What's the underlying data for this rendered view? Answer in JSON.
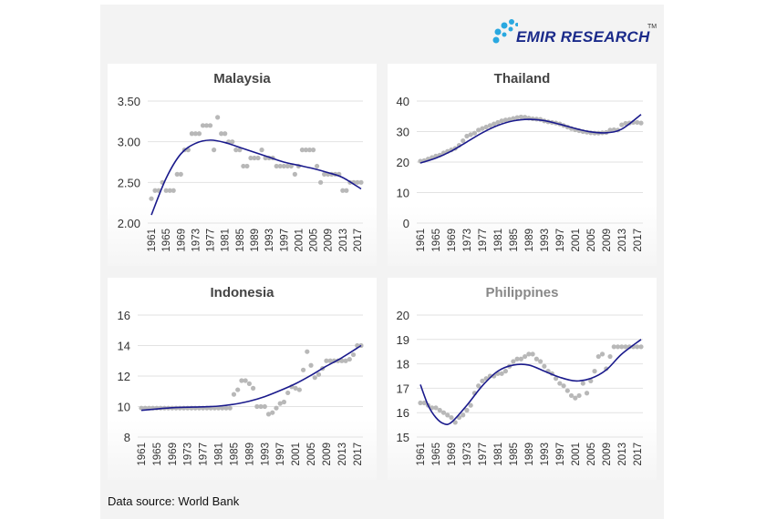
{
  "logo": {
    "text": "EMIR RESEARCH",
    "tm": "TM",
    "accent": "#29a8e0",
    "brand": "#1a2a8a"
  },
  "footer": "Data source: World Bank",
  "chart_data": [
    {
      "type": "scatter",
      "title": "Malaysia",
      "x_start": 1961,
      "x_end": 2018,
      "x_ticks": [
        "1961",
        "1965",
        "1969",
        "1973",
        "1977",
        "1981",
        "1985",
        "1989",
        "1993",
        "1997",
        "2001",
        "2005",
        "2009",
        "2013",
        "2017"
      ],
      "y_ticks": [
        "2.00",
        "2.50",
        "3.00",
        "3.50"
      ],
      "ylim": [
        2.0,
        3.5
      ],
      "grid": true,
      "marker_color": "#b8b8b8",
      "trend_color": "#1a1a8c",
      "values": [
        2.3,
        2.4,
        2.4,
        2.5,
        2.4,
        2.4,
        2.4,
        2.6,
        2.6,
        2.9,
        2.9,
        3.1,
        3.1,
        3.1,
        3.2,
        3.2,
        3.2,
        2.9,
        3.3,
        3.1,
        3.1,
        3.0,
        3.0,
        2.9,
        2.9,
        2.7,
        2.7,
        2.8,
        2.8,
        2.8,
        2.9,
        2.8,
        2.8,
        2.8,
        2.7,
        2.7,
        2.7,
        2.7,
        2.7,
        2.6,
        2.7,
        2.9,
        2.9,
        2.9,
        2.9,
        2.7,
        2.5,
        2.6,
        2.6,
        2.6,
        2.6,
        2.6,
        2.4,
        2.4,
        2.5,
        2.5,
        2.5,
        2.5
      ],
      "trend": [
        [
          1961,
          2.1
        ],
        [
          1965,
          2.55
        ],
        [
          1969,
          2.85
        ],
        [
          1973,
          2.98
        ],
        [
          1977,
          3.02
        ],
        [
          1981,
          2.99
        ],
        [
          1985,
          2.93
        ],
        [
          1989,
          2.87
        ],
        [
          1993,
          2.81
        ],
        [
          1997,
          2.75
        ],
        [
          2001,
          2.71
        ],
        [
          2005,
          2.67
        ],
        [
          2009,
          2.62
        ],
        [
          2013,
          2.56
        ],
        [
          2018,
          2.42
        ]
      ]
    },
    {
      "type": "scatter",
      "title": "Thailand",
      "x_start": 1961,
      "x_end": 2018,
      "x_ticks": [
        "1961",
        "1965",
        "1969",
        "1973",
        "1977",
        "1981",
        "1985",
        "1989",
        "1993",
        "1997",
        "2001",
        "2005",
        "2009",
        "2013",
        "2017"
      ],
      "y_ticks": [
        "0",
        "10",
        "20",
        "30",
        "40"
      ],
      "ylim": [
        0,
        40
      ],
      "grid": true,
      "marker_color": "#b8b8b8",
      "trend_color": "#1a1a8c",
      "values": [
        20.3,
        20.5,
        21,
        21.5,
        22,
        22.3,
        23,
        23.5,
        24,
        24.5,
        25.5,
        27,
        28.5,
        29,
        29.5,
        30.5,
        31,
        31.5,
        32,
        32.5,
        33,
        33.5,
        33.8,
        34,
        34.3,
        34.6,
        34.8,
        34.7,
        34.4,
        34.2,
        34.1,
        34,
        33.5,
        33.2,
        33,
        32.8,
        32.5,
        32,
        31.5,
        31,
        30.6,
        30.3,
        30,
        29.8,
        29.6,
        29.5,
        29.5,
        29.6,
        29.7,
        30.5,
        30.6,
        30.5,
        32.2,
        32.7,
        32.8,
        33,
        33,
        32.8
      ],
      "trend": [
        [
          1961,
          19.7
        ],
        [
          1965,
          21.3
        ],
        [
          1969,
          23.6
        ],
        [
          1973,
          26.6
        ],
        [
          1977,
          29.6
        ],
        [
          1981,
          32.0
        ],
        [
          1985,
          33.5
        ],
        [
          1989,
          34.0
        ],
        [
          1993,
          33.6
        ],
        [
          1997,
          32.4
        ],
        [
          2001,
          31.0
        ],
        [
          2005,
          29.9
        ],
        [
          2009,
          29.6
        ],
        [
          2013,
          30.8
        ],
        [
          2018,
          35.6
        ]
      ]
    },
    {
      "type": "scatter",
      "title": "Indonesia",
      "x_start": 1961,
      "x_end": 2018,
      "x_ticks": [
        "1961",
        "1965",
        "1969",
        "1973",
        "1977",
        "1981",
        "1985",
        "1989",
        "1993",
        "1997",
        "2001",
        "2005",
        "2009",
        "2013",
        "2017"
      ],
      "y_ticks": [
        "8",
        "10",
        "12",
        "14",
        "16"
      ],
      "ylim": [
        8,
        16
      ],
      "grid": true,
      "marker_color": "#b8b8b8",
      "trend_color": "#1a1a8c",
      "values": [
        9.9,
        9.9,
        9.9,
        9.9,
        9.9,
        9.9,
        9.9,
        9.9,
        9.9,
        9.9,
        9.9,
        9.9,
        9.9,
        9.9,
        9.9,
        9.9,
        9.9,
        9.9,
        9.9,
        9.9,
        9.9,
        9.9,
        9.9,
        9.9,
        10.8,
        11.1,
        11.7,
        11.7,
        11.5,
        11.2,
        10.0,
        10.0,
        10.0,
        9.5,
        9.6,
        9.9,
        10.2,
        10.3,
        10.9,
        11.3,
        11.2,
        11.1,
        12.4,
        13.6,
        12.7,
        11.9,
        12.1,
        12.5,
        13.0,
        13.0,
        13.0,
        13.0,
        13.0,
        13.0,
        13.1,
        13.4,
        14.0,
        14.0
      ],
      "trend": [
        [
          1961,
          9.75
        ],
        [
          1969,
          9.92
        ],
        [
          1977,
          9.98
        ],
        [
          1981,
          10.03
        ],
        [
          1985,
          10.15
        ],
        [
          1989,
          10.35
        ],
        [
          1993,
          10.65
        ],
        [
          1997,
          11.05
        ],
        [
          2001,
          11.5
        ],
        [
          2005,
          12.05
        ],
        [
          2009,
          12.65
        ],
        [
          2013,
          13.2
        ],
        [
          2018,
          14.0
        ]
      ]
    },
    {
      "type": "scatter",
      "title": "Philippines",
      "x_start": 1961,
      "x_end": 2018,
      "x_ticks": [
        "1961",
        "1965",
        "1969",
        "1973",
        "1977",
        "1981",
        "1985",
        "1989",
        "1993",
        "1997",
        "2001",
        "2005",
        "2009",
        "2013",
        "2017"
      ],
      "y_ticks": [
        "15",
        "16",
        "17",
        "18",
        "19",
        "20"
      ],
      "ylim": [
        15,
        20
      ],
      "grid": true,
      "marker_color": "#b8b8b8",
      "trend_color": "#1a1a8c",
      "values": [
        16.4,
        16.4,
        16.3,
        16.2,
        16.2,
        16.1,
        16.0,
        15.9,
        15.8,
        15.6,
        15.8,
        15.9,
        16.1,
        16.3,
        16.8,
        17.1,
        17.3,
        17.4,
        17.5,
        17.5,
        17.6,
        17.6,
        17.7,
        17.9,
        18.1,
        18.2,
        18.2,
        18.3,
        18.4,
        18.4,
        18.2,
        18.1,
        17.9,
        17.7,
        17.6,
        17.4,
        17.2,
        17.1,
        16.9,
        16.7,
        16.6,
        16.7,
        17.2,
        16.8,
        17.3,
        17.7,
        18.3,
        18.4,
        17.8,
        18.3,
        18.7,
        18.7,
        18.7,
        18.7,
        18.7,
        18.7,
        18.7,
        18.7
      ],
      "trend": [
        [
          1961,
          17.15
        ],
        [
          1963,
          16.3
        ],
        [
          1965,
          15.8
        ],
        [
          1967,
          15.55
        ],
        [
          1969,
          15.6
        ],
        [
          1973,
          16.3
        ],
        [
          1977,
          17.1
        ],
        [
          1981,
          17.7
        ],
        [
          1985,
          17.95
        ],
        [
          1989,
          17.95
        ],
        [
          1993,
          17.7
        ],
        [
          1997,
          17.45
        ],
        [
          2001,
          17.3
        ],
        [
          2005,
          17.4
        ],
        [
          2009,
          17.75
        ],
        [
          2013,
          18.4
        ],
        [
          2018,
          19.0
        ]
      ]
    }
  ]
}
